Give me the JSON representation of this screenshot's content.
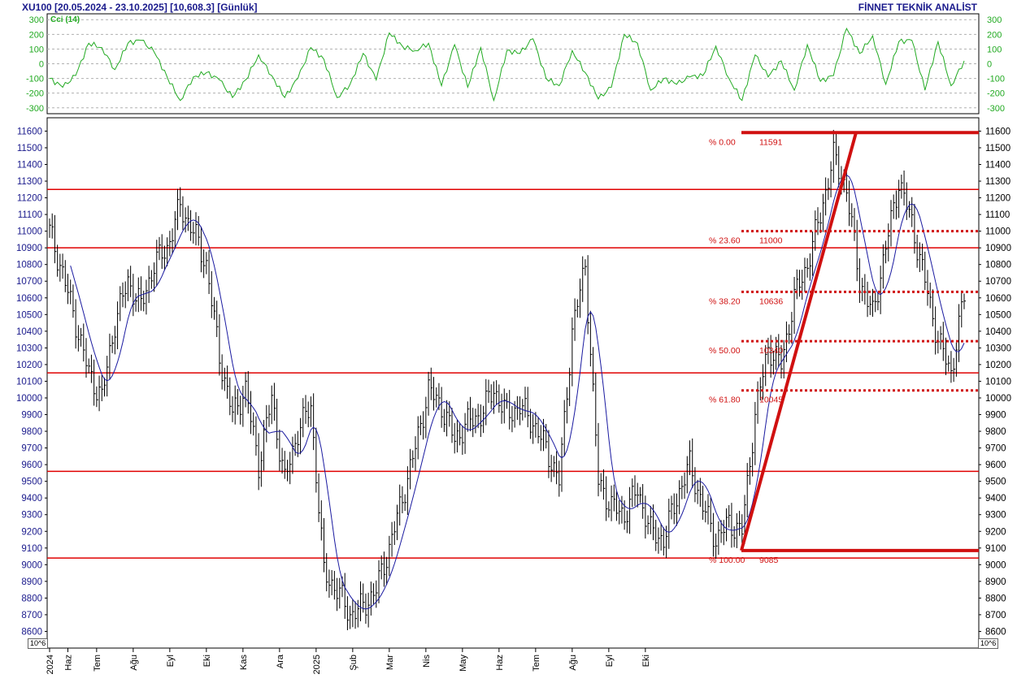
{
  "header": {
    "symbol": "XU100",
    "range": "[20.05.2024 - 23.10.2025]",
    "last": "[10,608.3]",
    "period": "[Günlük]",
    "brand": "FİNNET TEKNİK ANALİST"
  },
  "colors": {
    "price_bars": "#000000",
    "moving_average": "#1a1aa0",
    "cci_line": "#22aa22",
    "levels": "#e00000",
    "fib": "#d01010",
    "axis_text": "#1a1a8c",
    "grid": "#b0b0b0"
  },
  "unit_label": "10^6",
  "chart_data": [
    {
      "type": "line",
      "indicator_label": "Cci (14)",
      "ylim": [
        -340,
        340
      ],
      "yticks": [
        -300,
        -200,
        -100,
        0,
        100,
        200,
        300
      ],
      "grid": true,
      "series": [
        {
          "name": "Cci (14)",
          "x_day": [
            0,
            5,
            10,
            15,
            20,
            25,
            30,
            35,
            40,
            45,
            50,
            55,
            60,
            65,
            70,
            75,
            80,
            85,
            90,
            95,
            100,
            105,
            110,
            115,
            120,
            125,
            130,
            135,
            140,
            145,
            150,
            155,
            160,
            165,
            170,
            175,
            180,
            185,
            190,
            195,
            200,
            205,
            210,
            215,
            220,
            225,
            230,
            235,
            240,
            245,
            250,
            255,
            260,
            265,
            270,
            275,
            280,
            285,
            290,
            295,
            300,
            305,
            310,
            315,
            320,
            325,
            330,
            335,
            340,
            345,
            350
          ],
          "values": [
            -100,
            -160,
            -80,
            140,
            110,
            -40,
            140,
            160,
            80,
            -90,
            -250,
            -90,
            -60,
            -110,
            -230,
            -110,
            60,
            -80,
            -230,
            -100,
            110,
            30,
            -230,
            -140,
            70,
            -110,
            210,
            120,
            90,
            140,
            -150,
            130,
            -160,
            110,
            -250,
            90,
            70,
            170,
            -100,
            -150,
            90,
            -60,
            -240,
            -160,
            200,
            140,
            -180,
            -100,
            -140,
            -90,
            -80,
            120,
            -100,
            -250,
            60,
            -90,
            20,
            -180,
            130,
            -120,
            -80,
            240,
            70,
            190,
            -140,
            150,
            160,
            -180,
            150,
            -150,
            20
          ]
        }
      ]
    },
    {
      "type": "bar",
      "chart_subtype": "ohlc",
      "ylim": [
        8500,
        11680
      ],
      "yticks": [
        8600,
        8700,
        8800,
        8900,
        9000,
        9100,
        9200,
        9300,
        9400,
        9500,
        9600,
        9700,
        9800,
        9900,
        10000,
        10100,
        10200,
        10300,
        10400,
        10500,
        10600,
        10700,
        10800,
        10900,
        11000,
        11100,
        11200,
        11300,
        11400,
        11500,
        11600
      ],
      "x_tick_labels": [
        "2024",
        "Haz",
        "Tem",
        "Ağu",
        "Eyl",
        "Eki",
        "Kas",
        "Ara",
        "2025",
        "Şub",
        "Mar",
        "Nis",
        "May",
        "Haz",
        "Tem",
        "Ağu",
        "Eyl",
        "Eki"
      ],
      "x_tick_days": [
        0,
        7,
        18,
        32,
        46,
        60,
        74,
        88,
        102,
        116,
        130,
        144,
        158,
        172,
        186,
        200,
        214,
        228
      ],
      "close_day": [
        0,
        5,
        10,
        15,
        20,
        25,
        30,
        35,
        40,
        45,
        50,
        55,
        60,
        65,
        70,
        75,
        80,
        85,
        90,
        95,
        100,
        105,
        110,
        115,
        120,
        125,
        130,
        135,
        140,
        145,
        150,
        155,
        160,
        165,
        170,
        175,
        180,
        185,
        190,
        195,
        200,
        205,
        210,
        215,
        220,
        225,
        230,
        235,
        240,
        245,
        250,
        255,
        260,
        265,
        270,
        275,
        280,
        285,
        290,
        295,
        300,
        305,
        310,
        315,
        320,
        325,
        330,
        335,
        340,
        345,
        350
      ],
      "close": [
        11000,
        10750,
        10450,
        10150,
        10000,
        10450,
        10700,
        10550,
        10800,
        10900,
        11150,
        11000,
        10800,
        10250,
        9900,
        10050,
        9600,
        10000,
        9500,
        9800,
        9950,
        8950,
        8850,
        8700,
        8750,
        8850,
        9100,
        9400,
        9700,
        10050,
        9950,
        9750,
        9850,
        9900,
        10050,
        9900,
        9950,
        9850,
        9700,
        9500,
        10400,
        10800,
        9500,
        9350,
        9300,
        9450,
        9200,
        9150,
        9400,
        9600,
        9350,
        9150,
        9250,
        9200,
        9900,
        10300,
        10200,
        10600,
        10800,
        11100,
        11450,
        11250,
        10700,
        10500,
        10900,
        11300,
        11050,
        10700,
        10350,
        10150,
        10608
      ],
      "series": [
        {
          "name": "",
          "values": [
            11000,
            10750,
            10450,
            10150,
            10000,
            10450,
            10700,
            10550,
            10800,
            10900,
            11150,
            11000,
            10800,
            10250,
            9900,
            10050,
            9600,
            10000,
            9500,
            9800,
            9950,
            8950,
            8850,
            8700,
            8750,
            8850,
            9100,
            9400,
            9700,
            10050,
            9950,
            9750,
            9850,
            9900,
            10050,
            9900,
            9950,
            9850,
            9700,
            9500,
            10400,
            10800,
            9500,
            9350,
            9300,
            9450,
            9200,
            9150,
            9400,
            9600,
            9350,
            9150,
            9250,
            9200,
            9900,
            10300,
            10200,
            10600,
            10800,
            11100,
            11450,
            11250,
            10700,
            10500,
            10900,
            11300,
            11050,
            10700,
            10350,
            10150,
            10608
          ]
        }
      ],
      "horizontal_levels": [
        11250,
        10900,
        10150,
        9560,
        9040
      ],
      "fibonacci": {
        "start_value": 9085,
        "end_value": 11591,
        "levels": [
          {
            "pct": "% 0.00",
            "value": "11591",
            "price": 11591
          },
          {
            "pct": "% 23.60",
            "value": "11000",
            "price": 11000
          },
          {
            "pct": "% 38.20",
            "value": "10636",
            "price": 10636
          },
          {
            "pct": "% 50.00",
            "value": "10340",
            "price": 10340
          },
          {
            "pct": "% 61.80",
            "value": "10045",
            "price": 10045
          },
          {
            "pct": "% 100.00",
            "value": "9085",
            "price": 9085
          }
        ]
      }
    }
  ]
}
